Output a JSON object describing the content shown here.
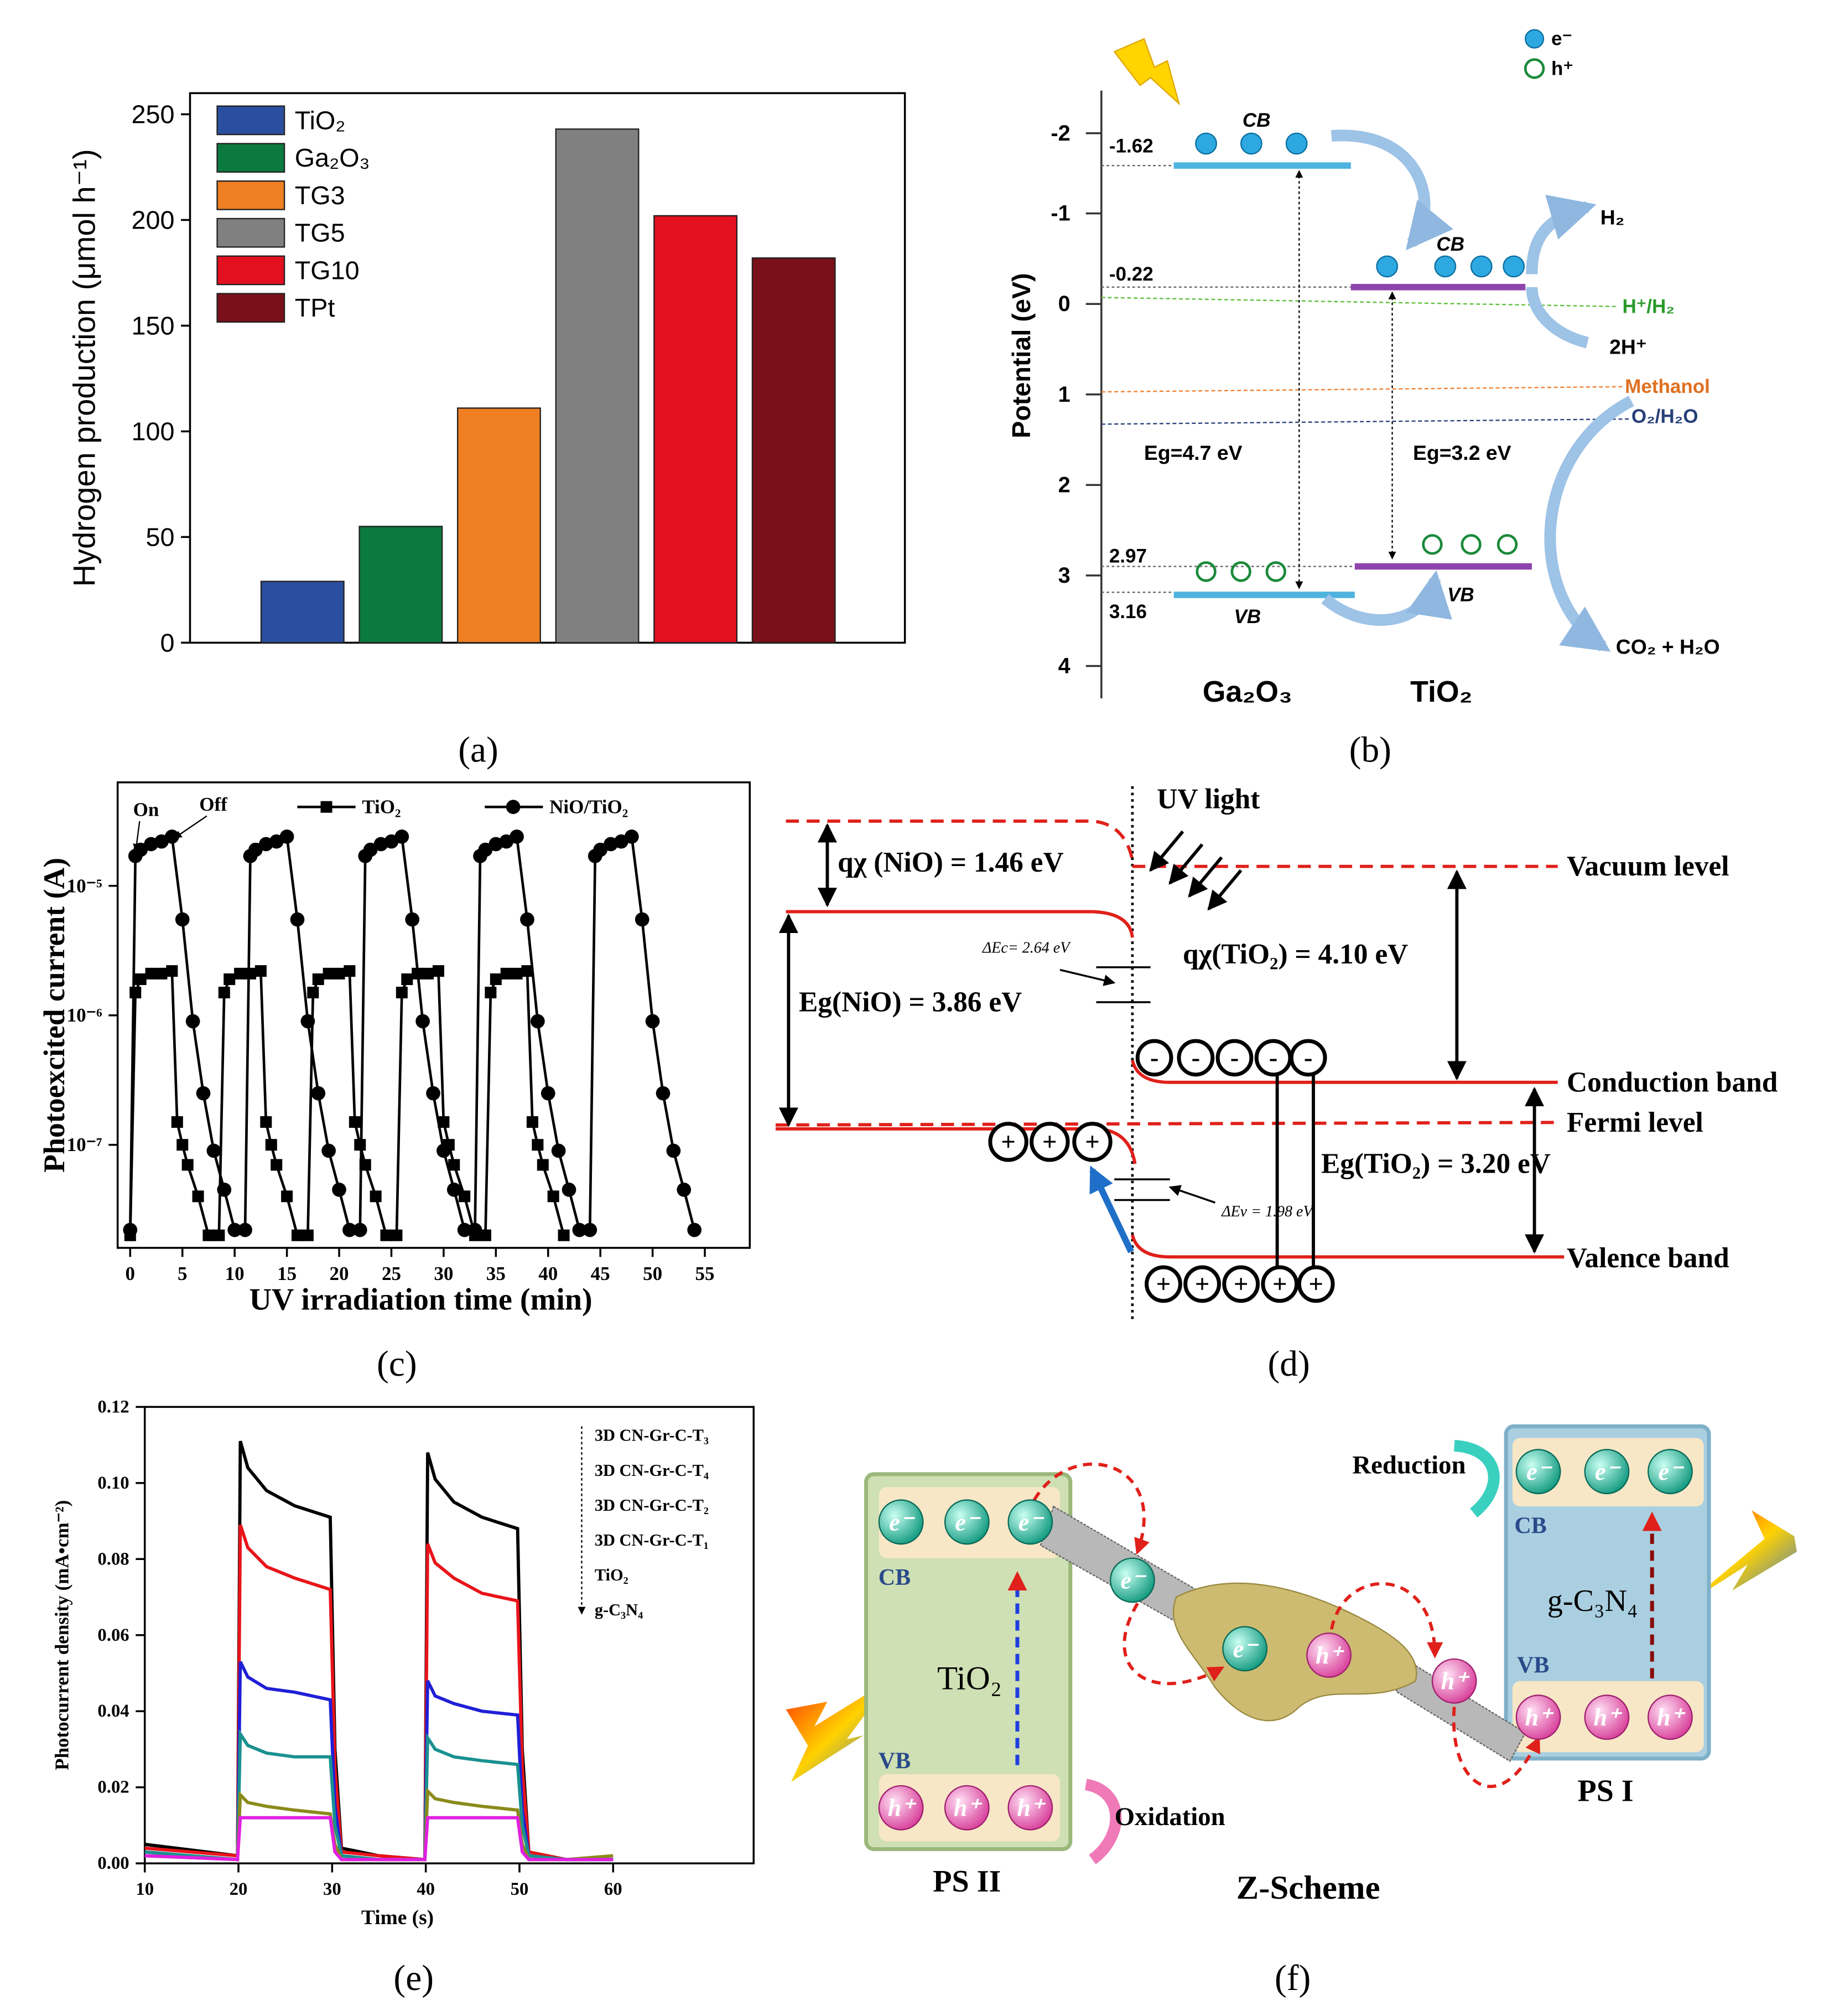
{
  "chart_data": [
    {
      "type": "bar",
      "ylabel": "Hydrogen production (μmol h⁻¹)",
      "categories": [
        "TiO₂",
        "Ga₂O₃",
        "TG3",
        "TG5",
        "TG10",
        "TPt"
      ],
      "values": [
        29,
        55,
        111,
        243,
        202,
        182
      ],
      "colors": [
        "#2b4fa0",
        "#0b7a3e",
        "#ef7f22",
        "#808080",
        "#e3101f",
        "#7a1019"
      ],
      "ylim": [
        0,
        260
      ],
      "yticks": [
        0,
        50,
        100,
        150,
        200,
        250
      ],
      "legend": "upper left"
    },
    {
      "type": "line",
      "log_y": true,
      "xlabel": "UV irradiation time (min)",
      "ylabel": "Photoexcited current (A)",
      "annotations": [
        "On",
        "Off"
      ],
      "xlim": [
        -1.2,
        59.3
      ],
      "xticks": [
        0,
        5,
        10,
        15,
        20,
        25,
        30,
        35,
        40,
        45,
        50,
        55
      ],
      "ylim": [
        1.6e-08,
        6.3e-05
      ],
      "yticks": [
        {
          "value": 1e-05,
          "label": "10⁻⁵"
        },
        {
          "value": 1e-06,
          "label": "10⁻⁶"
        },
        {
          "value": 1e-07,
          "label": "10⁻⁷"
        }
      ],
      "legend": "upper center",
      "series": [
        {
          "name": "TiO₂",
          "color": "#000000",
          "marker": "square",
          "x": [
            0,
            0.5,
            1,
            2,
            3,
            4,
            4.5,
            5,
            5.5,
            6.5,
            7.5,
            8.5,
            9,
            9.5,
            10.5,
            11.5,
            12.5,
            13,
            13.5,
            14,
            15,
            16,
            17,
            17.5,
            18,
            19,
            20,
            21,
            21.5,
            22,
            22.5,
            23.5,
            24.5,
            25.5,
            26,
            26.5,
            27.5,
            28.5,
            29.5,
            30,
            30.5,
            31,
            32,
            33,
            34,
            34.5,
            35,
            36,
            37,
            38,
            38.5,
            39,
            39.5,
            40.5,
            41.5
          ],
          "values": [
            2e-08,
            1.5e-06,
            1.9e-06,
            2.1e-06,
            2.1e-06,
            2.2e-06,
            1.5e-07,
            1e-07,
            7e-08,
            4e-08,
            2e-08,
            2e-08,
            1.5e-06,
            1.9e-06,
            2.1e-06,
            2.1e-06,
            2.2e-06,
            1.5e-07,
            1e-07,
            7e-08,
            4e-08,
            2e-08,
            2e-08,
            1.5e-06,
            1.9e-06,
            2.1e-06,
            2.1e-06,
            2.2e-06,
            1.5e-07,
            1e-07,
            7e-08,
            4e-08,
            2e-08,
            2e-08,
            1.5e-06,
            1.9e-06,
            2.1e-06,
            2.1e-06,
            2.2e-06,
            1.5e-07,
            1e-07,
            7e-08,
            4e-08,
            2e-08,
            2e-08,
            1.5e-06,
            1.9e-06,
            2.1e-06,
            2.1e-06,
            2.2e-06,
            1.5e-07,
            1e-07,
            7e-08,
            4e-08,
            2e-08
          ]
        },
        {
          "name": "NiO/TiO₂",
          "color": "#000000",
          "marker": "circle",
          "x": [
            0,
            0.5,
            1,
            2,
            3,
            4,
            5,
            6,
            7,
            8,
            9,
            10,
            11,
            11.5,
            12,
            13,
            14,
            15,
            16,
            17,
            18,
            19,
            20,
            21,
            22,
            22.5,
            23,
            24,
            25,
            26,
            27,
            28,
            29,
            30,
            31,
            32,
            33,
            33.5,
            34,
            35,
            36,
            37,
            38,
            39,
            40,
            41,
            42,
            43,
            44,
            44.5,
            45,
            46,
            47,
            48,
            49,
            50,
            51,
            52,
            53,
            54
          ],
          "values": [
            2.2e-08,
            1.7e-05,
            1.9e-05,
            2.1e-05,
            2.2e-05,
            2.4e-05,
            5.5e-06,
            9e-07,
            2.5e-07,
            9e-08,
            4.5e-08,
            2.2e-08,
            2.2e-08,
            1.7e-05,
            1.9e-05,
            2.1e-05,
            2.2e-05,
            2.4e-05,
            5.5e-06,
            9e-07,
            2.5e-07,
            9e-08,
            4.5e-08,
            2.2e-08,
            2.2e-08,
            1.7e-05,
            1.9e-05,
            2.1e-05,
            2.2e-05,
            2.4e-05,
            5.5e-06,
            9e-07,
            2.5e-07,
            9e-08,
            4.5e-08,
            2.2e-08,
            2.2e-08,
            1.7e-05,
            1.9e-05,
            2.1e-05,
            2.2e-05,
            2.4e-05,
            5.5e-06,
            9e-07,
            2.5e-07,
            9e-08,
            4.5e-08,
            2.2e-08,
            2.2e-08,
            1.7e-05,
            1.9e-05,
            2.1e-05,
            2.2e-05,
            2.4e-05,
            5.5e-06,
            9e-07,
            2.5e-07,
            9e-08,
            4.5e-08,
            2.2e-08
          ]
        }
      ]
    },
    {
      "type": "line",
      "xlabel": "Time (s)",
      "ylabel": "Photocurrent density (mA•cm⁻²)",
      "xlim": [
        10,
        75
      ],
      "xticks": [
        10,
        20,
        30,
        40,
        50,
        60
      ],
      "ylim": [
        0,
        0.12
      ],
      "yticks": [
        {
          "value": 0,
          "label": "0.00"
        },
        0.02,
        0.04,
        0.06,
        0.08,
        {
          "value": 0.1,
          "label": "0.10"
        },
        0.12
      ],
      "legend": "upper right",
      "x": [
        10,
        19.9,
        20.2,
        21,
        23,
        26,
        29.8,
        30.3,
        31,
        35,
        39.9,
        40.2,
        41,
        43,
        46,
        49.8,
        50.3,
        51,
        55,
        60
      ],
      "series": [
        {
          "name": "3D CN-Gr-C-T₃",
          "color": "#000000",
          "values": [
            0.005,
            0.002,
            0.111,
            0.104,
            0.098,
            0.094,
            0.091,
            0.03,
            0.004,
            0.002,
            0.001,
            0.108,
            0.101,
            0.095,
            0.091,
            0.088,
            0.03,
            0.003,
            0.001,
            0.001
          ]
        },
        {
          "name": "3D CN-Gr-C-T₄",
          "color": "#e8141a",
          "values": [
            0.004,
            0.002,
            0.089,
            0.083,
            0.078,
            0.075,
            0.072,
            0.025,
            0.003,
            0.002,
            0.001,
            0.084,
            0.079,
            0.075,
            0.071,
            0.069,
            0.025,
            0.003,
            0.001,
            0.001
          ]
        },
        {
          "name": "3D CN-Gr-C-T₂",
          "color": "#1f1fd8",
          "values": [
            0.003,
            0.001,
            0.053,
            0.049,
            0.046,
            0.045,
            0.043,
            0.015,
            0.002,
            0.001,
            0.001,
            0.048,
            0.044,
            0.042,
            0.04,
            0.039,
            0.014,
            0.002,
            0.001,
            0.001
          ]
        },
        {
          "name": "3D CN-Gr-C-T₁",
          "color": "#1a9090",
          "values": [
            0.003,
            0.001,
            0.034,
            0.031,
            0.029,
            0.028,
            0.028,
            0.01,
            0.002,
            0.001,
            0.001,
            0.033,
            0.03,
            0.028,
            0.027,
            0.026,
            0.01,
            0.002,
            0.001,
            0.001
          ]
        },
        {
          "name": "TiO₂",
          "color": "#8a8a1a",
          "values": [
            0.002,
            0.001,
            0.018,
            0.016,
            0.015,
            0.014,
            0.013,
            0.005,
            0.001,
            0.001,
            0.001,
            0.019,
            0.017,
            0.016,
            0.015,
            0.014,
            0.005,
            0.001,
            0.001,
            0.002
          ]
        },
        {
          "name": "g-C₃N₄",
          "color": "#e020e0",
          "values": [
            0.002,
            0.001,
            0.012,
            0.012,
            0.012,
            0.012,
            0.012,
            0.003,
            0.001,
            0.001,
            0.001,
            0.012,
            0.012,
            0.012,
            0.012,
            0.012,
            0.003,
            0.001,
            0.001,
            0.001
          ]
        }
      ]
    }
  ],
  "panel_labels": [
    "(a)",
    "(b)",
    "(c)",
    "(d)",
    "(e)",
    "(f)"
  ],
  "band_diagram": {
    "legend": [
      "e⁻",
      "h⁺"
    ],
    "axis_label": "Potential (eV)",
    "ticks": [
      -2,
      -1,
      0,
      1,
      2,
      3,
      4
    ],
    "levels": [
      -1.62,
      -0.22,
      2.97,
      3.16
    ],
    "bands": [
      "CB",
      "CB",
      "VB",
      "VB"
    ],
    "gaps": [
      "Eg=4.7 eV",
      "Eg=3.2 eV"
    ],
    "redox": [
      "H⁺/H₂",
      "Methanol",
      "O₂/H₂O"
    ],
    "products": [
      "H₂",
      "2H⁺",
      "CO₂ + H₂O"
    ],
    "materials": [
      "Ga₂O₃",
      "TiO₂"
    ]
  },
  "energy_diagram": {
    "light": "UV light",
    "vacuum_nio": "qχ (NiO) = 1.46 eV",
    "vacuum_tio2": "qχ(TiO₂) = 4.10 eV",
    "gap_nio": "Eg(NiO) = 3.86 eV",
    "gap_tio2": "Eg(TiO₂) = 3.20 eV",
    "offset_c": "ΔEc= 2.64 eV",
    "offset_v": "ΔEv = 1.98 eV",
    "levels": [
      "Vacuum level",
      "Conduction band",
      "Fermi level",
      "Valence band"
    ],
    "minus": "-",
    "plus": "+"
  },
  "z_scheme": {
    "electron": "e⁻",
    "hole": "h⁺",
    "bands": [
      "CB",
      "VB",
      "CB",
      "VB"
    ],
    "materials": [
      "TiO₂",
      "g-C₃N₄"
    ],
    "systems": [
      "PS II",
      "PS I"
    ],
    "processes": [
      "Reduction",
      "Oxidation"
    ],
    "title": "Z-Scheme"
  }
}
